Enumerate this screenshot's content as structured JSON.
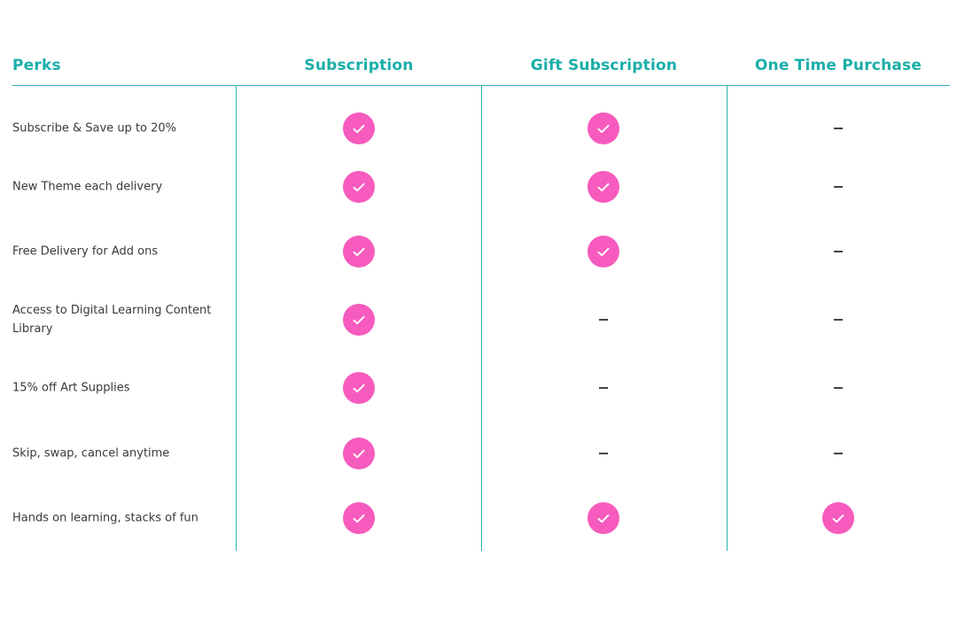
{
  "header": {
    "perks": "Perks",
    "col1": "Subscription",
    "col2": "Gift Subscription",
    "col3": "One Time Purchase"
  },
  "colors": {
    "accent": "#1aaea8",
    "check": "#f65bbd"
  },
  "rows": [
    {
      "perk": "Subscribe & Save up to 20%",
      "subscription": true,
      "gift": true,
      "one_time": false
    },
    {
      "perk": "New Theme each delivery",
      "subscription": true,
      "gift": true,
      "one_time": false
    },
    {
      "perk": "Free Delivery for Add ons",
      "subscription": true,
      "gift": true,
      "one_time": false
    },
    {
      "perk": "Access to Digital Learning Content Library",
      "subscription": true,
      "gift": false,
      "one_time": false
    },
    {
      "perk": "15% off Art Supplies",
      "subscription": true,
      "gift": false,
      "one_time": false
    },
    {
      "perk": "Skip, swap, cancel anytime",
      "subscription": true,
      "gift": false,
      "one_time": false
    },
    {
      "perk": "Hands on learning, stacks of fun",
      "subscription": true,
      "gift": true,
      "one_time": true
    }
  ]
}
